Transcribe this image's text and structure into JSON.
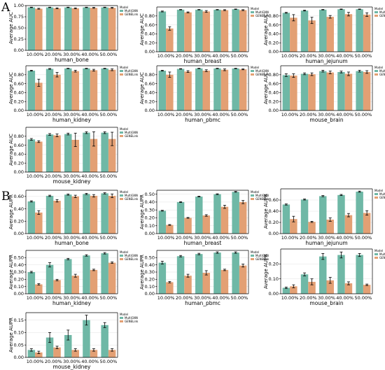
{
  "panel_letters": [
    "A",
    "B"
  ],
  "colors": {
    "multignn": "#6fb8a6",
    "genelink": "#e3a074",
    "genelink_alt": "#cfa07a"
  },
  "chart_data": [
    {
      "type": "bar",
      "panel": "A",
      "title": "",
      "xlabel": "human_bone",
      "ylabel": "Average AUC",
      "categories": [
        "10.00%",
        "20.00%",
        "30.00%",
        "40.00%",
        "50.00%"
      ],
      "ylim": [
        0,
        1.0
      ],
      "yticks": [
        0,
        0.25,
        0.5,
        0.75,
        1.0
      ],
      "legend_title": "Model",
      "legend": "top-right",
      "series": [
        {
          "name": "MultiGNN",
          "values": [
            0.96,
            0.96,
            0.96,
            0.96,
            0.96
          ],
          "err": [
            0.005,
            0.005,
            0.005,
            0.005,
            0.005
          ]
        },
        {
          "name": "GENELink",
          "values": [
            0.93,
            0.94,
            0.94,
            0.95,
            0.95
          ],
          "err": [
            0.01,
            0.01,
            0.01,
            0.01,
            0.01
          ]
        }
      ]
    },
    {
      "type": "bar",
      "panel": "A",
      "title": "",
      "xlabel": "human_breast",
      "ylabel": "Average AUC",
      "categories": [
        "10.00%",
        "20.00%",
        "30.00%",
        "40.00%",
        "50.00%"
      ],
      "ylim": [
        0,
        1.0
      ],
      "yticks": [
        0,
        0.2,
        0.4,
        0.6,
        0.8
      ],
      "legend_title": "Model",
      "legend": "top-right",
      "series": [
        {
          "name": "MultiGNN",
          "values": [
            0.9,
            0.94,
            0.94,
            0.94,
            0.95
          ],
          "err": [
            0.01,
            0.005,
            0.005,
            0.005,
            0.005
          ]
        },
        {
          "name": "GENELink",
          "values": [
            0.52,
            0.88,
            0.9,
            0.93,
            0.93
          ],
          "err": [
            0.04,
            0.01,
            0.02,
            0.01,
            0.01
          ]
        }
      ]
    },
    {
      "type": "bar",
      "panel": "A",
      "title": "",
      "xlabel": "human_jejunum",
      "ylabel": "Average AUC",
      "categories": [
        "10.00%",
        "20.00%",
        "30.00%",
        "40.00%",
        "50.00%"
      ],
      "ylim": [
        0,
        1.0
      ],
      "yticks": [
        0,
        0.2,
        0.4,
        0.6,
        0.8
      ],
      "legend_title": "Model",
      "legend": "top-right",
      "series": [
        {
          "name": "MultiGNN",
          "values": [
            0.87,
            0.92,
            0.94,
            0.95,
            0.95
          ],
          "err": [
            0.01,
            0.01,
            0.005,
            0.005,
            0.005
          ]
        },
        {
          "name": "GENELink",
          "values": [
            0.76,
            0.7,
            0.78,
            0.84,
            0.83
          ],
          "err": [
            0.07,
            0.07,
            0.03,
            0.04,
            0.04
          ]
        }
      ]
    },
    {
      "type": "bar",
      "panel": "A",
      "title": "",
      "xlabel": "human_kidney",
      "ylabel": "Average AUC",
      "categories": [
        "10.00%",
        "20.00%",
        "30.00%",
        "40.00%",
        "50.00%"
      ],
      "ylim": [
        0,
        1.0
      ],
      "yticks": [
        0,
        0.2,
        0.4,
        0.6,
        0.8
      ],
      "legend_title": "Model",
      "legend": "top-right",
      "series": [
        {
          "name": "MultiGNN",
          "values": [
            0.89,
            0.93,
            0.94,
            0.94,
            0.94
          ],
          "err": [
            0.01,
            0.01,
            0.005,
            0.005,
            0.005
          ]
        },
        {
          "name": "GENELink",
          "values": [
            0.62,
            0.8,
            0.88,
            0.9,
            0.91
          ],
          "err": [
            0.08,
            0.05,
            0.02,
            0.02,
            0.02
          ]
        }
      ]
    },
    {
      "type": "bar",
      "panel": "A",
      "title": "",
      "xlabel": "human_pbmc",
      "ylabel": "Average AUC",
      "categories": [
        "10.00%",
        "20.00%",
        "30.00%",
        "40.00%",
        "50.00%"
      ],
      "ylim": [
        0,
        1.0
      ],
      "yticks": [
        0,
        0.2,
        0.4,
        0.6,
        0.8
      ],
      "legend_title": "Model",
      "legend": "top-right",
      "series": [
        {
          "name": "MultiGNN",
          "values": [
            0.89,
            0.93,
            0.94,
            0.94,
            0.94
          ],
          "err": [
            0.01,
            0.005,
            0.005,
            0.005,
            0.005
          ]
        },
        {
          "name": "GENELink",
          "values": [
            0.8,
            0.87,
            0.89,
            0.91,
            0.92
          ],
          "err": [
            0.06,
            0.02,
            0.02,
            0.02,
            0.01
          ]
        }
      ]
    },
    {
      "type": "bar",
      "panel": "A",
      "title": "",
      "xlabel": "mouse_brain",
      "ylabel": "Average AUC",
      "categories": [
        "10.00%",
        "20.00%",
        "30.00%",
        "40.00%",
        "50.00%"
      ],
      "ylim": [
        0,
        1.0
      ],
      "yticks": [
        0,
        0.2,
        0.4,
        0.6,
        0.8
      ],
      "legend_title": "Model",
      "legend": "top-right",
      "series": [
        {
          "name": "MultiGNN",
          "values": [
            0.79,
            0.82,
            0.88,
            0.86,
            0.88
          ],
          "err": [
            0.03,
            0.02,
            0.02,
            0.02,
            0.02
          ]
        },
        {
          "name": "GENELink",
          "values": [
            0.78,
            0.81,
            0.85,
            0.82,
            0.86
          ],
          "err": [
            0.04,
            0.03,
            0.03,
            0.04,
            0.03
          ]
        }
      ]
    },
    {
      "type": "bar",
      "panel": "A",
      "title": "",
      "xlabel": "mouse_kidney",
      "ylabel": "Average AUC",
      "categories": [
        "10.00%",
        "20.00%",
        "30.00%",
        "40.00%",
        "50.00%"
      ],
      "ylim": [
        0,
        1.0
      ],
      "yticks": [
        0,
        0.2,
        0.4,
        0.6,
        0.8
      ],
      "legend_title": "Model",
      "legend": "top-right",
      "series": [
        {
          "name": "MultiGNN",
          "values": [
            0.73,
            0.84,
            0.85,
            0.88,
            0.88
          ],
          "err": [
            0.02,
            0.02,
            0.02,
            0.02,
            0.02
          ]
        },
        {
          "name": "GENELink",
          "values": [
            0.68,
            0.82,
            0.72,
            0.74,
            0.74
          ],
          "err": [
            0.02,
            0.03,
            0.15,
            0.16,
            0.15
          ]
        }
      ]
    },
    {
      "type": "bar",
      "panel": "B",
      "title": "",
      "xlabel": "human_bone",
      "ylabel": "Average AUPR",
      "categories": [
        "10.00%",
        "20.00%",
        "30.00%",
        "40.00%",
        "50.00%"
      ],
      "ylim": [
        0,
        0.7
      ],
      "yticks": [
        0,
        0.2,
        0.4,
        0.6
      ],
      "legend_title": "Model",
      "legend": "top-right",
      "series": [
        {
          "name": "MultiGNN",
          "values": [
            0.52,
            0.61,
            0.63,
            0.64,
            0.65
          ],
          "err": [
            0.01,
            0.01,
            0.01,
            0.01,
            0.01
          ]
        },
        {
          "name": "GENELink",
          "values": [
            0.34,
            0.53,
            0.6,
            0.61,
            0.61
          ],
          "err": [
            0.03,
            0.02,
            0.02,
            0.02,
            0.03
          ]
        }
      ]
    },
    {
      "type": "bar",
      "panel": "B",
      "title": "",
      "xlabel": "human_breast",
      "ylabel": "Average AUPR",
      "categories": [
        "10.00%",
        "20.00%",
        "30.00%",
        "40.00%",
        "50.00%"
      ],
      "ylim": [
        0,
        0.55
      ],
      "yticks": [
        0,
        0.1,
        0.2,
        0.3,
        0.4,
        0.5
      ],
      "legend_title": "Model",
      "legend": "top-right",
      "series": [
        {
          "name": "MultiGNN",
          "values": [
            0.29,
            0.4,
            0.47,
            0.5,
            0.53
          ],
          "err": [
            0.005,
            0.005,
            0.005,
            0.005,
            0.005
          ]
        },
        {
          "name": "GENELink",
          "values": [
            0.11,
            0.2,
            0.23,
            0.34,
            0.4
          ],
          "err": [
            0.005,
            0.005,
            0.01,
            0.02,
            0.02
          ]
        }
      ]
    },
    {
      "type": "bar",
      "panel": "B",
      "title": "",
      "xlabel": "human_jejunum",
      "ylabel": "Average AUPR",
      "categories": [
        "10.00%",
        "20.00%",
        "30.00%",
        "40.00%",
        "50.00%"
      ],
      "ylim": [
        0,
        0.8
      ],
      "yticks": [
        0,
        0.2,
        0.4,
        0.6
      ],
      "legend_title": "Model",
      "legend": "top-right",
      "series": [
        {
          "name": "MultiGNN",
          "values": [
            0.52,
            0.61,
            0.67,
            0.69,
            0.75
          ],
          "err": [
            0.01,
            0.01,
            0.01,
            0.01,
            0.01
          ]
        },
        {
          "name": "GENELink",
          "values": [
            0.26,
            0.21,
            0.25,
            0.33,
            0.37
          ],
          "err": [
            0.05,
            0.01,
            0.03,
            0.03,
            0.04
          ]
        }
      ]
    },
    {
      "type": "bar",
      "panel": "B",
      "title": "",
      "xlabel": "human_kidney",
      "ylabel": "Average AUPR",
      "categories": [
        "10.00%",
        "20.00%",
        "30.00%",
        "40.00%",
        "50.00%"
      ],
      "ylim": [
        0,
        0.6
      ],
      "yticks": [
        0,
        0.1,
        0.2,
        0.3,
        0.4,
        0.5
      ],
      "legend_title": "Model",
      "legend": "top-right",
      "series": [
        {
          "name": "MultiGNN",
          "values": [
            0.3,
            0.4,
            0.48,
            0.53,
            0.56
          ],
          "err": [
            0.01,
            0.03,
            0.01,
            0.01,
            0.01
          ]
        },
        {
          "name": "GENELink",
          "values": [
            0.13,
            0.19,
            0.25,
            0.33,
            0.43
          ],
          "err": [
            0.01,
            0.01,
            0.02,
            0.01,
            0.01
          ]
        }
      ]
    },
    {
      "type": "bar",
      "panel": "B",
      "title": "",
      "xlabel": "human_pbmc",
      "ylabel": "Average AUPR",
      "categories": [
        "10.00%",
        "20.00%",
        "30.00%",
        "40.00%",
        "50.00%"
      ],
      "ylim": [
        0,
        0.6
      ],
      "yticks": [
        0,
        0.1,
        0.2,
        0.3,
        0.4,
        0.5
      ],
      "legend_title": "Model",
      "legend": "top-right",
      "series": [
        {
          "name": "MultiGNN",
          "values": [
            0.43,
            0.52,
            0.55,
            0.57,
            0.57
          ],
          "err": [
            0.02,
            0.01,
            0.01,
            0.01,
            0.01
          ]
        },
        {
          "name": "GENELink",
          "values": [
            0.16,
            0.25,
            0.29,
            0.33,
            0.39
          ],
          "err": [
            0.01,
            0.02,
            0.03,
            0.01,
            0.02
          ]
        }
      ]
    },
    {
      "type": "bar",
      "panel": "B",
      "title": "",
      "xlabel": "mouse_brain",
      "ylabel": "Average AUPR",
      "categories": [
        "10.00%",
        "20.00%",
        "30.00%",
        "40.00%",
        "50.00%"
      ],
      "ylim": [
        0,
        0.3
      ],
      "yticks": [
        0,
        0.1,
        0.2
      ],
      "legend_title": "Model",
      "legend": "top-right",
      "series": [
        {
          "name": "MultiGNN",
          "values": [
            0.04,
            0.13,
            0.25,
            0.26,
            0.26
          ],
          "err": [
            0.005,
            0.01,
            0.02,
            0.02,
            0.01
          ]
        },
        {
          "name": "GENELink",
          "values": [
            0.05,
            0.08,
            0.09,
            0.07,
            0.06
          ],
          "err": [
            0.01,
            0.02,
            0.02,
            0.01,
            0.005
          ]
        }
      ]
    },
    {
      "type": "bar",
      "panel": "B",
      "title": "",
      "xlabel": "mouse_kidney",
      "ylabel": "Average AUPR",
      "categories": [
        "10.00%",
        "20.00%",
        "30.00%",
        "40.00%",
        "50.00%"
      ],
      "ylim": [
        0,
        0.18
      ],
      "yticks": [
        0,
        0.05,
        0.1,
        0.15
      ],
      "legend_title": "Model",
      "legend": "top-right",
      "series": [
        {
          "name": "MultiGNN",
          "values": [
            0.03,
            0.08,
            0.09,
            0.15,
            0.13
          ],
          "err": [
            0.005,
            0.02,
            0.02,
            0.02,
            0.01
          ]
        },
        {
          "name": "GENELink",
          "values": [
            0.02,
            0.04,
            0.03,
            0.03,
            0.03
          ],
          "err": [
            0.005,
            0.005,
            0.005,
            0.005,
            0.005
          ]
        }
      ]
    }
  ]
}
